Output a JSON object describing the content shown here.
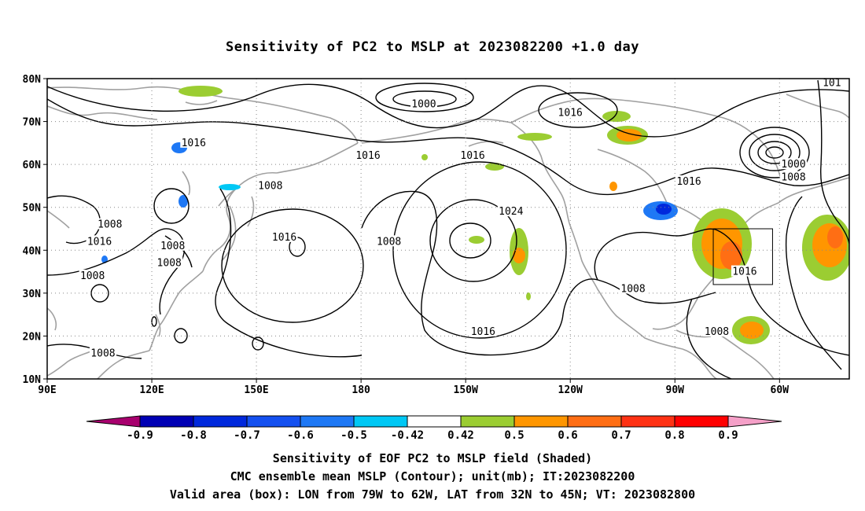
{
  "title": "Sensitivity of PC2 to MSLP at 2023082200 +1.0 day",
  "lat_labels": [
    "80N",
    "70N",
    "60N",
    "50N",
    "40N",
    "30N",
    "20N",
    "10N"
  ],
  "lon_labels": [
    "90E",
    "120E",
    "150E",
    "180",
    "150W",
    "120W",
    "90W",
    "60W"
  ],
  "contour_labels": [
    {
      "text": "1016",
      "lon": 132,
      "lat": 65
    },
    {
      "text": "1008",
      "lon": 108,
      "lat": 46
    },
    {
      "text": "1016",
      "lon": 105,
      "lat": 42
    },
    {
      "text": "1008",
      "lon": 126,
      "lat": 41
    },
    {
      "text": "1008",
      "lon": 125,
      "lat": 37
    },
    {
      "text": "1008",
      "lon": 103,
      "lat": 34
    },
    {
      "text": "1008",
      "lon": 106,
      "lat": 16
    },
    {
      "text": "1016",
      "lon": 158,
      "lat": 43
    },
    {
      "text": "1008",
      "lon": 154,
      "lat": 55
    },
    {
      "text": "1000",
      "lon": 198,
      "lat": 74
    },
    {
      "text": "1016",
      "lon": 182,
      "lat": 62
    },
    {
      "text": "1016",
      "lon": 212,
      "lat": 62
    },
    {
      "text": "1016",
      "lon": 240,
      "lat": 72
    },
    {
      "text": "1024",
      "lon": 223,
      "lat": 49
    },
    {
      "text": "1008",
      "lon": 188,
      "lat": 42
    },
    {
      "text": "1016",
      "lon": 215,
      "lat": 21
    },
    {
      "text": "1008",
      "lon": 258,
      "lat": 31
    },
    {
      "text": "1008",
      "lon": 282,
      "lat": 21
    },
    {
      "text": "1016",
      "lon": 274,
      "lat": 56
    },
    {
      "text": "1000",
      "lon": 304,
      "lat": 60
    },
    {
      "text": "1008",
      "lon": 304,
      "lat": 57
    },
    {
      "text": "1016",
      "lon": 290,
      "lat": 35
    },
    {
      "text": "101",
      "lon": 315,
      "lat": 79
    }
  ],
  "colorbar": {
    "colors": [
      "#a8006e",
      "#0000b4",
      "#0028dc",
      "#1450f0",
      "#1e78f5",
      "#00c8f5",
      "#ffffff",
      "#9bcd32",
      "#ff9600",
      "#ff6e14",
      "#ff3214",
      "#ff0000",
      "#f5a0c8"
    ],
    "labels": [
      "-0.9",
      "-0.8",
      "-0.7",
      "-0.6",
      "-0.5",
      "-0.42",
      "0.42",
      "0.5",
      "0.6",
      "0.7",
      "0.8",
      "0.9"
    ]
  },
  "footer": {
    "line1": "Sensitivity of EOF PC2 to MSLP field (Shaded)",
    "line2": "CMC ensemble mean MSLP (Contour); unit(mb); IT:2023082200",
    "line3": "Valid area (box): LON from 79W to 62W, LAT from 32N to 45N; VT: 2023082800"
  },
  "valid_box": {
    "lon_w": 281,
    "lon_e": 298,
    "lat_s": 32,
    "lat_n": 45
  },
  "colors": {
    "contour": "#000000",
    "coast": "#a0a0a0",
    "grid": "#888888"
  }
}
